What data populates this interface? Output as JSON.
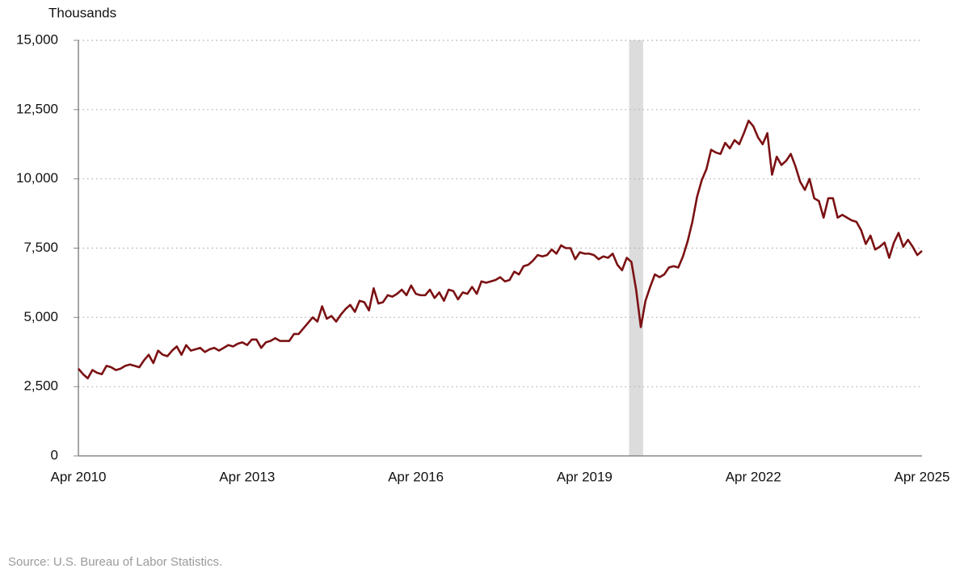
{
  "chart_data": {
    "type": "line",
    "y_label": "Thousands",
    "source": "Source: U.S. Bureau of Labor Statistics.",
    "color": "#7b1113",
    "grid": true,
    "categories": [
      "Apr 2010",
      null,
      null,
      null,
      null,
      null,
      null,
      null,
      null,
      null,
      null,
      null,
      null,
      null,
      null,
      null,
      null,
      null,
      null,
      null,
      null,
      null,
      null,
      null,
      null,
      null,
      null,
      null,
      null,
      null,
      null,
      null,
      null,
      null,
      null,
      null,
      "Apr 2013",
      null,
      null,
      null,
      null,
      null,
      null,
      null,
      null,
      null,
      null,
      null,
      null,
      null,
      null,
      null,
      null,
      null,
      null,
      null,
      null,
      null,
      null,
      null,
      null,
      null,
      null,
      null,
      null,
      null,
      null,
      null,
      null,
      null,
      null,
      null,
      "Apr 2016",
      null,
      null,
      null,
      null,
      null,
      null,
      null,
      null,
      null,
      null,
      null,
      null,
      null,
      null,
      null,
      null,
      null,
      null,
      null,
      null,
      null,
      null,
      null,
      null,
      null,
      null,
      null,
      null,
      null,
      null,
      null,
      null,
      null,
      null,
      null,
      "Apr 2019",
      null,
      null,
      null,
      null,
      null,
      null,
      null,
      null,
      null,
      null,
      null,
      null,
      null,
      null,
      null,
      null,
      null,
      null,
      null,
      null,
      null,
      null,
      null,
      null,
      null,
      null,
      null,
      null,
      null,
      null,
      null,
      null,
      null,
      null,
      null,
      "Apr 2022",
      null,
      null,
      null,
      null,
      null,
      null,
      null,
      null,
      null,
      null,
      null,
      null,
      null,
      null,
      null,
      null,
      null,
      null,
      null,
      null,
      null,
      null,
      null,
      null,
      null,
      null,
      null,
      null,
      null,
      null,
      null,
      null,
      null,
      null,
      null,
      "Apr 2025"
    ],
    "values": [
      3150,
      2950,
      2800,
      3100,
      3000,
      2950,
      3250,
      3200,
      3100,
      3150,
      3250,
      3300,
      3250,
      3200,
      3450,
      3650,
      3350,
      3800,
      3650,
      3600,
      3800,
      3950,
      3650,
      4000,
      3800,
      3850,
      3900,
      3750,
      3850,
      3900,
      3800,
      3900,
      4000,
      3950,
      4050,
      4100,
      4000,
      4200,
      4200,
      3900,
      4100,
      4150,
      4250,
      4150,
      4150,
      4150,
      4400,
      4400,
      4600,
      4800,
      5000,
      4850,
      5400,
      4950,
      5050,
      4850,
      5100,
      5300,
      5450,
      5200,
      5600,
      5550,
      5250,
      6050,
      5500,
      5550,
      5800,
      5750,
      5850,
      6000,
      5800,
      6150,
      5850,
      5800,
      5800,
      6000,
      5700,
      5900,
      5600,
      6000,
      5950,
      5650,
      5900,
      5850,
      6100,
      5850,
      6300,
      6250,
      6300,
      6350,
      6450,
      6300,
      6350,
      6650,
      6550,
      6850,
      6900,
      7050,
      7250,
      7200,
      7250,
      7450,
      7300,
      7600,
      7500,
      7500,
      7100,
      7350,
      7300,
      7300,
      7250,
      7100,
      7200,
      7150,
      7300,
      6900,
      6700,
      7150,
      7000,
      6000,
      4650,
      5600,
      6100,
      6550,
      6450,
      6550,
      6800,
      6850,
      6800,
      7200,
      7750,
      8450,
      9350,
      9950,
      10350,
      11050,
      10950,
      10900,
      11300,
      11100,
      11400,
      11250,
      11650,
      12100,
      11900,
      11500,
      11250,
      11650,
      10150,
      10800,
      10500,
      10650,
      10900,
      10450,
      9900,
      9600,
      10000,
      9300,
      9200,
      8600,
      9300,
      9300,
      8600,
      8700,
      8600,
      8500,
      8450,
      8150,
      7650,
      7950,
      7450,
      7550,
      7700,
      7150,
      7700,
      8050,
      7550,
      7800,
      7550,
      7250,
      7400
    ],
    "shaded_periods": [
      {
        "start": 118,
        "end": 120
      }
    ],
    "ylim": [
      0,
      15000
    ],
    "yticks": [
      0,
      {
        "value": 2500,
        "label": "2,500"
      },
      {
        "value": 5000,
        "label": "5,000"
      },
      {
        "value": 7500,
        "label": "7,500"
      },
      {
        "value": 10000,
        "label": "10,000"
      },
      {
        "value": 12500,
        "label": "12,500"
      },
      {
        "value": 15000,
        "label": "15,000"
      }
    ]
  }
}
